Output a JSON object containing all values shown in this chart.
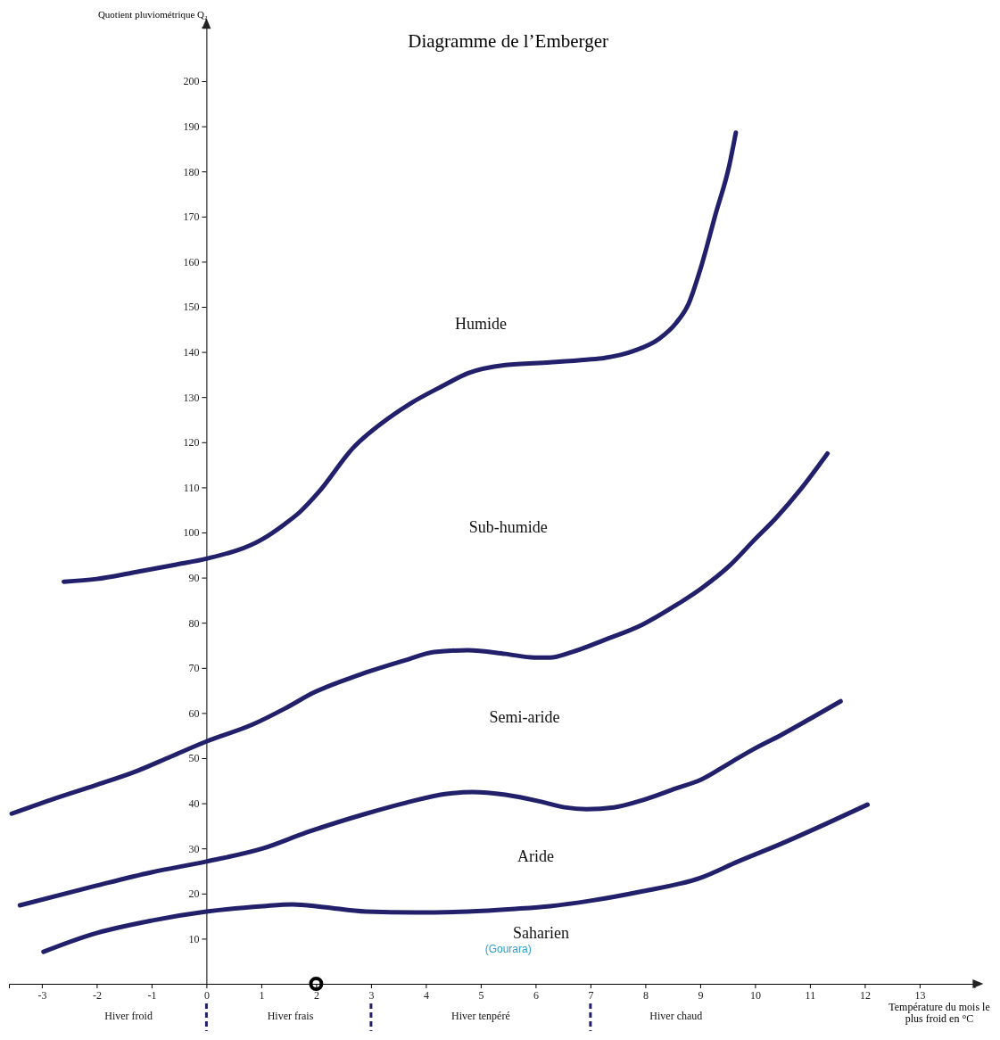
{
  "chart_data": {
    "type": "line",
    "title": "Diagramme de l’Emberger",
    "ylabel": "Quotient pluviométrique Q₂",
    "xlabel": "Température du mois le plus froid en °C",
    "xlim": [
      -3.6,
      14
    ],
    "ylim": [
      0,
      212
    ],
    "xticks": [
      -3,
      -2,
      -1,
      0,
      1,
      2,
      3,
      4,
      5,
      6,
      7,
      8,
      9,
      10,
      11,
      12,
      13
    ],
    "yticks": [
      10,
      20,
      30,
      40,
      50,
      60,
      70,
      80,
      90,
      100,
      110,
      120,
      130,
      140,
      150,
      160,
      170,
      180,
      190,
      200
    ],
    "grid": false,
    "marker": "none",
    "line_style": "solid",
    "series": [
      {
        "color": "#23206b",
        "x": [
          -2.6,
          -2.0,
          -1.34,
          -0.55,
          0,
          1.03,
          1.43,
          1.7,
          2.05,
          2.67,
          3.35,
          3.72,
          4.31,
          4.77,
          5.45,
          6.26,
          6.93,
          7.26,
          7.78,
          8.26,
          8.56,
          8.79,
          9.01,
          9.28,
          9.53,
          9.65
        ],
        "values": [
          89.1,
          89.7,
          91.1,
          92.9,
          94.2,
          98.6,
          101.9,
          104.5,
          109.0,
          118.7,
          125.6,
          128.6,
          132.5,
          135.3,
          137.1,
          137.7,
          138.3,
          138.7,
          140.2,
          143.0,
          146.4,
          150.7,
          158.6,
          170.5,
          181.3,
          188.6
        ]
      },
      {
        "color": "#23206b",
        "x": [
          -3.55,
          -2.85,
          -2.02,
          -1.34,
          -0.64,
          0,
          0.85,
          1.43,
          1.97,
          2.75,
          3.63,
          4.15,
          4.77,
          5.45,
          5.98,
          6.26,
          6.66,
          7.26,
          7.95,
          8.56,
          9.01,
          9.55,
          9.96,
          10.39,
          10.82,
          11.32
        ],
        "values": [
          37.7,
          40.7,
          44.0,
          46.8,
          50.4,
          53.7,
          57.5,
          61.0,
          64.6,
          68.3,
          71.7,
          73.5,
          73.9,
          73.1,
          72.3,
          72.3,
          73.5,
          76.2,
          79.6,
          83.9,
          87.5,
          92.8,
          98.0,
          103.3,
          109.4,
          117.5
        ]
      },
      {
        "color": "#23206b",
        "x": [
          -3.4,
          -2.02,
          -1,
          0,
          1.03,
          1.84,
          2.91,
          3.63,
          4.38,
          4.85,
          5.45,
          6.12,
          6.53,
          6.93,
          7.43,
          7.95,
          8.56,
          9.01,
          9.55,
          9.96,
          10.47,
          11,
          11.56
        ],
        "values": [
          17.4,
          21.7,
          24.7,
          27.1,
          30.0,
          33.6,
          37.7,
          40.1,
          42.1,
          42.5,
          41.9,
          40.3,
          39.1,
          38.7,
          39.1,
          40.7,
          43.3,
          45.2,
          49.0,
          51.9,
          55.1,
          58.7,
          62.6
        ]
      },
      {
        "color": "#23206b",
        "x": [
          -2.97,
          -2.1,
          -1,
          0,
          1.03,
          1.57,
          2.13,
          2.91,
          3.81,
          4.77,
          5.63,
          6.26,
          7,
          7.95,
          9.01,
          9.69,
          10.47,
          11.32,
          12.05
        ],
        "values": [
          7.1,
          10.9,
          14.0,
          16.0,
          17.2,
          17.6,
          17.0,
          16.0,
          15.8,
          16.0,
          16.6,
          17.2,
          18.4,
          20.5,
          23.5,
          27.1,
          31.0,
          35.6,
          39.7
        ]
      },
      {
        "type": "scatter",
        "marker": "circle",
        "color": "#000000",
        "x": [
          2
        ],
        "values": [
          0
        ]
      }
    ],
    "annotations": [
      "Humide",
      "Sub-humide",
      "Semi-aride",
      "Aride",
      "Saharien",
      "Hiver froid",
      "Hiver frais",
      "Hiver tenpéré",
      "Hiver chaud",
      "(Gourara)"
    ]
  }
}
